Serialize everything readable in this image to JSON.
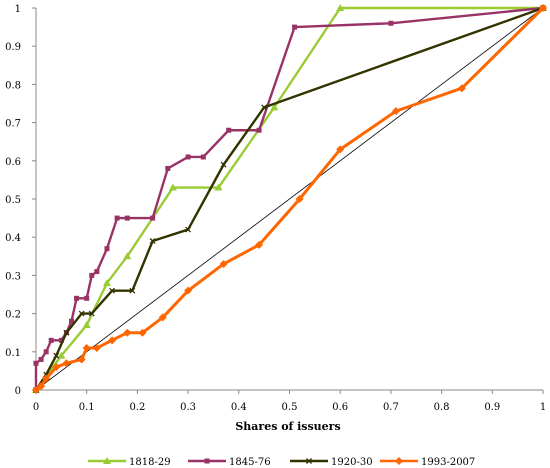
{
  "chart_data": {
    "type": "line",
    "title": "",
    "xlabel": "Shares of issuers",
    "ylabel": "",
    "xlim": [
      0,
      1
    ],
    "ylim": [
      0,
      1
    ],
    "x_ticks": [
      "0",
      "0.1",
      "0.2",
      "0.3",
      "0.4",
      "0.5",
      "0.6",
      "0.7",
      "0.8",
      "0.9",
      "1"
    ],
    "y_ticks": [
      "0",
      "0.1",
      "0.2",
      "0.3",
      "0.4",
      "0.5",
      "0.6",
      "0.7",
      "0.8",
      "0.9",
      "1"
    ],
    "grid": false,
    "legend_position": "bottom",
    "diagonal": [
      [
        0,
        0
      ],
      [
        1,
        1
      ]
    ],
    "series": [
      {
        "name": "1818-29",
        "color": "#99cc33",
        "marker": "triangle",
        "points": [
          [
            0,
            0
          ],
          [
            0.05,
            0.09
          ],
          [
            0.1,
            0.17
          ],
          [
            0.14,
            0.28
          ],
          [
            0.18,
            0.35
          ],
          [
            0.27,
            0.53
          ],
          [
            0.36,
            0.53
          ],
          [
            0.47,
            0.74
          ],
          [
            0.6,
            1.0
          ],
          [
            1.0,
            1.0
          ]
        ]
      },
      {
        "name": "1845-76",
        "color": "#993366",
        "marker": "square",
        "points": [
          [
            0,
            0
          ],
          [
            0,
            0.07
          ],
          [
            0.01,
            0.08
          ],
          [
            0.02,
            0.1
          ],
          [
            0.03,
            0.13
          ],
          [
            0.05,
            0.13
          ],
          [
            0.06,
            0.15
          ],
          [
            0.07,
            0.18
          ],
          [
            0.08,
            0.24
          ],
          [
            0.1,
            0.24
          ],
          [
            0.11,
            0.3
          ],
          [
            0.12,
            0.31
          ],
          [
            0.14,
            0.37
          ],
          [
            0.16,
            0.45
          ],
          [
            0.18,
            0.45
          ],
          [
            0.23,
            0.45
          ],
          [
            0.26,
            0.58
          ],
          [
            0.3,
            0.61
          ],
          [
            0.33,
            0.61
          ],
          [
            0.38,
            0.68
          ],
          [
            0.44,
            0.68
          ],
          [
            0.51,
            0.95
          ],
          [
            0.7,
            0.96
          ],
          [
            1.0,
            1.0
          ]
        ]
      },
      {
        "name": "1920-30",
        "color": "#333300",
        "marker": "x",
        "points": [
          [
            0,
            0
          ],
          [
            0.02,
            0.04
          ],
          [
            0.04,
            0.09
          ],
          [
            0.06,
            0.15
          ],
          [
            0.09,
            0.2
          ],
          [
            0.11,
            0.2
          ],
          [
            0.15,
            0.26
          ],
          [
            0.19,
            0.26
          ],
          [
            0.23,
            0.39
          ],
          [
            0.3,
            0.42
          ],
          [
            0.37,
            0.59
          ],
          [
            0.45,
            0.74
          ],
          [
            1.0,
            1.0
          ]
        ]
      },
      {
        "name": "1993-2007",
        "color": "#ff6600",
        "marker": "diamond",
        "points": [
          [
            0,
            0
          ],
          [
            0.01,
            0.01
          ],
          [
            0.02,
            0.03
          ],
          [
            0.04,
            0.06
          ],
          [
            0.06,
            0.07
          ],
          [
            0.09,
            0.08
          ],
          [
            0.1,
            0.11
          ],
          [
            0.12,
            0.11
          ],
          [
            0.15,
            0.13
          ],
          [
            0.18,
            0.15
          ],
          [
            0.21,
            0.15
          ],
          [
            0.25,
            0.19
          ],
          [
            0.3,
            0.26
          ],
          [
            0.37,
            0.33
          ],
          [
            0.44,
            0.38
          ],
          [
            0.52,
            0.5
          ],
          [
            0.6,
            0.63
          ],
          [
            0.71,
            0.73
          ],
          [
            0.84,
            0.79
          ],
          [
            1.0,
            1.0
          ]
        ]
      }
    ]
  }
}
